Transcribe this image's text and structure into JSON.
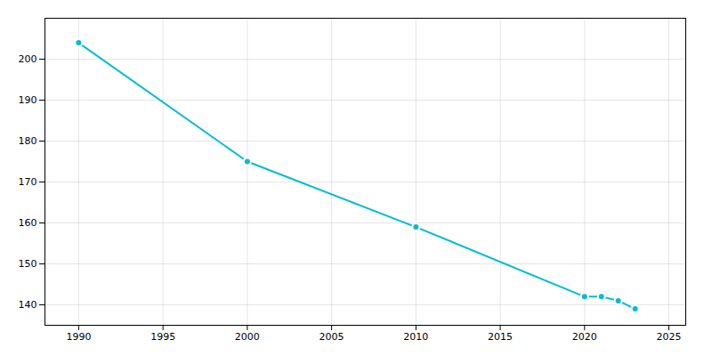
{
  "chart_data": {
    "type": "line",
    "x": [
      1990,
      2000,
      2010,
      2020,
      2021,
      2022,
      2023
    ],
    "values": [
      204,
      175,
      159,
      142,
      142,
      141,
      139
    ],
    "color": "#00BCD4",
    "marker": "circle",
    "xlim": [
      1988,
      2026
    ],
    "ylim": [
      135,
      210
    ],
    "xticks": [
      1990,
      1995,
      2000,
      2005,
      2010,
      2015,
      2020,
      2025
    ],
    "yticks": [
      140,
      150,
      160,
      170,
      180,
      190,
      200
    ],
    "grid": true
  }
}
